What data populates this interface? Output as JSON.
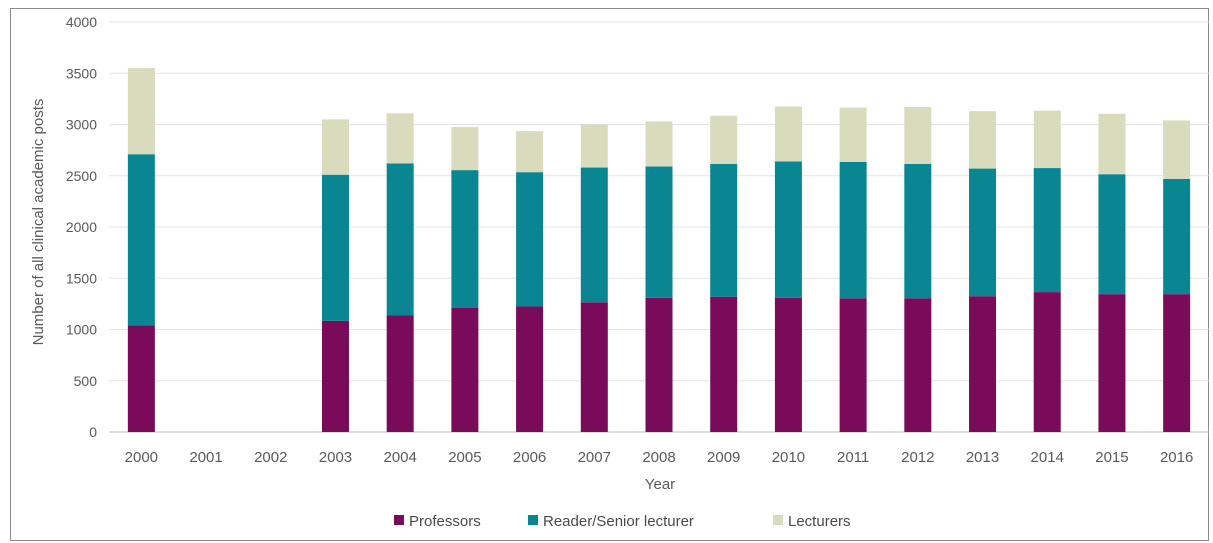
{
  "chart_data": {
    "type": "bar",
    "stacked": true,
    "xlabel": "Year",
    "ylabel": "Number of all clinical academic posts",
    "ylim": [
      0,
      4000
    ],
    "yticks": [
      0,
      500,
      1000,
      1500,
      2000,
      2500,
      3000,
      3500,
      4000
    ],
    "grid": true,
    "legend_position": "bottom",
    "categories": [
      "2000",
      "2001",
      "2002",
      "2003",
      "2004",
      "2005",
      "2006",
      "2007",
      "2008",
      "2009",
      "2010",
      "2011",
      "2012",
      "2013",
      "2014",
      "2015",
      "2016"
    ],
    "series": [
      {
        "name": "Professors",
        "color": "#7a0a5a",
        "values": [
          1040,
          null,
          null,
          1085,
          1140,
          1210,
          1225,
          1265,
          1310,
          1320,
          1310,
          1305,
          1305,
          1325,
          1365,
          1345,
          1345
        ]
      },
      {
        "name": "Reader/Senior lecturer",
        "color": "#0a8592",
        "values": [
          1670,
          null,
          null,
          1425,
          1480,
          1345,
          1310,
          1315,
          1280,
          1295,
          1330,
          1330,
          1310,
          1245,
          1210,
          1170,
          1125
        ]
      },
      {
        "name": "Lecturers",
        "color": "#d9dbbd",
        "values": [
          840,
          null,
          null,
          540,
          490,
          420,
          400,
          420,
          440,
          470,
          535,
          530,
          555,
          560,
          560,
          590,
          570
        ]
      }
    ]
  }
}
